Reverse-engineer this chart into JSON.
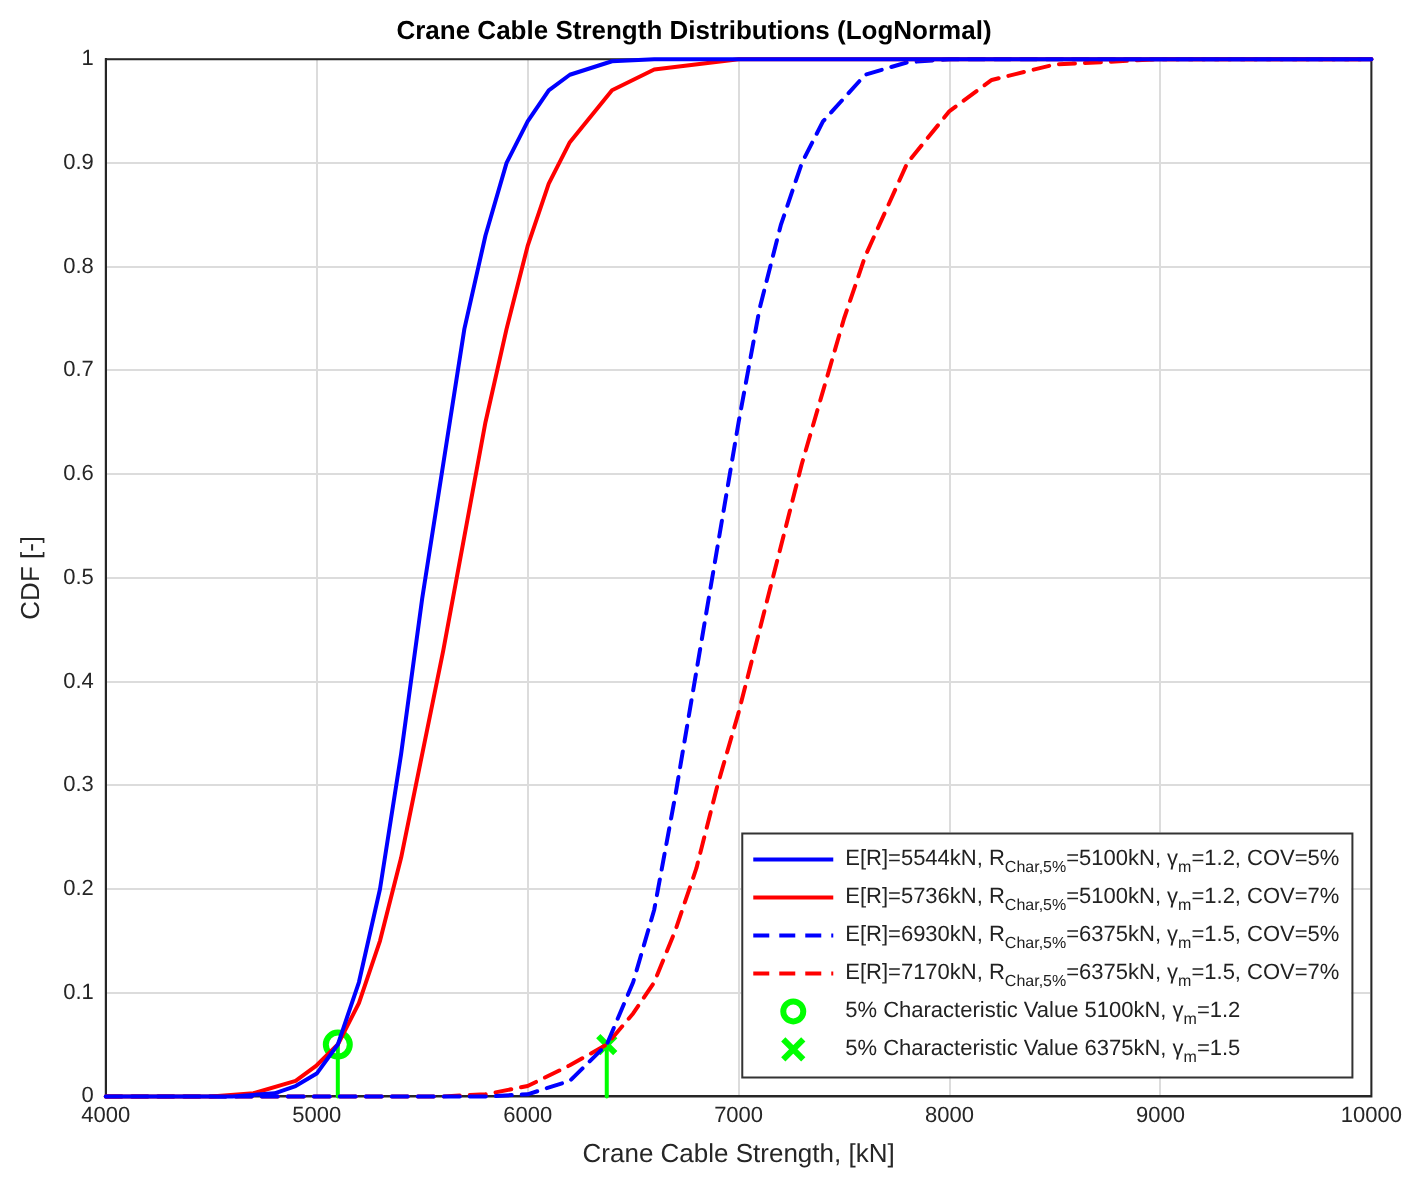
{
  "chart_data": {
    "type": "line",
    "title": "Crane Cable Strength Distributions (LogNormal)",
    "xlabel": "Crane Cable Strength, [kN]",
    "ylabel": "CDF [-]",
    "xlim": [
      4000,
      10000
    ],
    "xticks": [
      4000,
      5000,
      6000,
      7000,
      8000,
      9000,
      10000
    ],
    "ylim": [
      0,
      1
    ],
    "yticks": [
      0,
      0.1,
      0.2,
      0.3,
      0.4,
      0.5,
      0.6,
      0.7,
      0.8,
      0.9,
      1
    ],
    "grid": true,
    "legend": "bottom right",
    "series": [
      {
        "name": "E[R]=5544kN, R$_{Char,5%}$=5100kN, γ$_{m}$=1.2, COV=5%",
        "color": "#0000ff",
        "line_style": "solid",
        "marker": "none",
        "x": [
          4000,
          4600,
          4800,
          4900,
          5000,
          5100,
          5200,
          5300,
          5400,
          5500,
          5600,
          5700,
          5800,
          5900,
          6000,
          6100,
          6200,
          6400,
          6600,
          10000
        ],
        "values": [
          0,
          0,
          0.003,
          0.01,
          0.022,
          0.05,
          0.11,
          0.2,
          0.33,
          0.48,
          0.61,
          0.74,
          0.83,
          0.9,
          0.94,
          0.97,
          0.985,
          0.998,
          1,
          1
        ]
      },
      {
        "name": "E[R]=5736kN, R$_{Char,5%}$=5100kN, γ$_{m}$=1.2, COV=7%",
        "color": "#ff0000",
        "line_style": "solid",
        "marker": "none",
        "x": [
          4000,
          4500,
          4700,
          4900,
          5000,
          5100,
          5200,
          5300,
          5400,
          5500,
          5600,
          5700,
          5800,
          5900,
          6000,
          6100,
          6200,
          6400,
          6600,
          7000,
          10000
        ],
        "values": [
          0,
          0,
          0.003,
          0.015,
          0.03,
          0.05,
          0.09,
          0.15,
          0.23,
          0.33,
          0.43,
          0.54,
          0.65,
          0.74,
          0.82,
          0.88,
          0.92,
          0.97,
          0.99,
          1,
          1
        ]
      },
      {
        "name": "E[R]=6930kN, R$_{Char,5%}$=6375kN, γ$_{m}$=1.5, COV=5%",
        "color": "#0000ff",
        "line_style": "dashed",
        "marker": "none",
        "x": [
          4000,
          5800,
          6000,
          6200,
          6375,
          6500,
          6600,
          6700,
          6800,
          6900,
          7000,
          7100,
          7200,
          7300,
          7400,
          7600,
          7800,
          8000,
          10000
        ],
        "values": [
          0,
          0,
          0.002,
          0.015,
          0.05,
          0.11,
          0.18,
          0.29,
          0.41,
          0.53,
          0.65,
          0.76,
          0.84,
          0.9,
          0.94,
          0.985,
          0.997,
          1,
          1
        ]
      },
      {
        "name": "E[R]=7170kN, R$_{Char,5%}$=6375kN, γ$_{m}$=1.5, COV=7%",
        "color": "#ff0000",
        "line_style": "dashed",
        "marker": "none",
        "x": [
          4000,
          5600,
          5800,
          6000,
          6200,
          6375,
          6500,
          6600,
          6700,
          6800,
          6900,
          7000,
          7100,
          7200,
          7300,
          7400,
          7500,
          7600,
          7800,
          8000,
          8200,
          8500,
          9000,
          10000
        ],
        "values": [
          0,
          0,
          0.002,
          0.01,
          0.03,
          0.05,
          0.08,
          0.11,
          0.16,
          0.22,
          0.3,
          0.37,
          0.45,
          0.53,
          0.61,
          0.68,
          0.75,
          0.81,
          0.9,
          0.95,
          0.98,
          0.995,
          1,
          1
        ]
      },
      {
        "color": "#00ff00",
        "line_style": "solid",
        "marker": "none",
        "x": [
          5100,
          5100
        ],
        "values": [
          0,
          0.05
        ]
      },
      {
        "color": "#00ff00",
        "line_style": "solid",
        "marker": "none",
        "x": [
          6375,
          6375
        ],
        "values": [
          0,
          0.05
        ]
      },
      {
        "type": "scatter",
        "name": "5% Characteristic Value 5100kN, γ$_{m}$=1.2",
        "color": "#00ff00",
        "marker": "circle",
        "x": [
          5100
        ],
        "values": [
          0.05
        ]
      },
      {
        "type": "scatter",
        "name": "5% Characteristic Value 6375kN, γ$_{m}$=1.5",
        "color": "#00ff00",
        "marker": "cross",
        "x": [
          6375
        ],
        "values": [
          0.05
        ]
      }
    ]
  }
}
